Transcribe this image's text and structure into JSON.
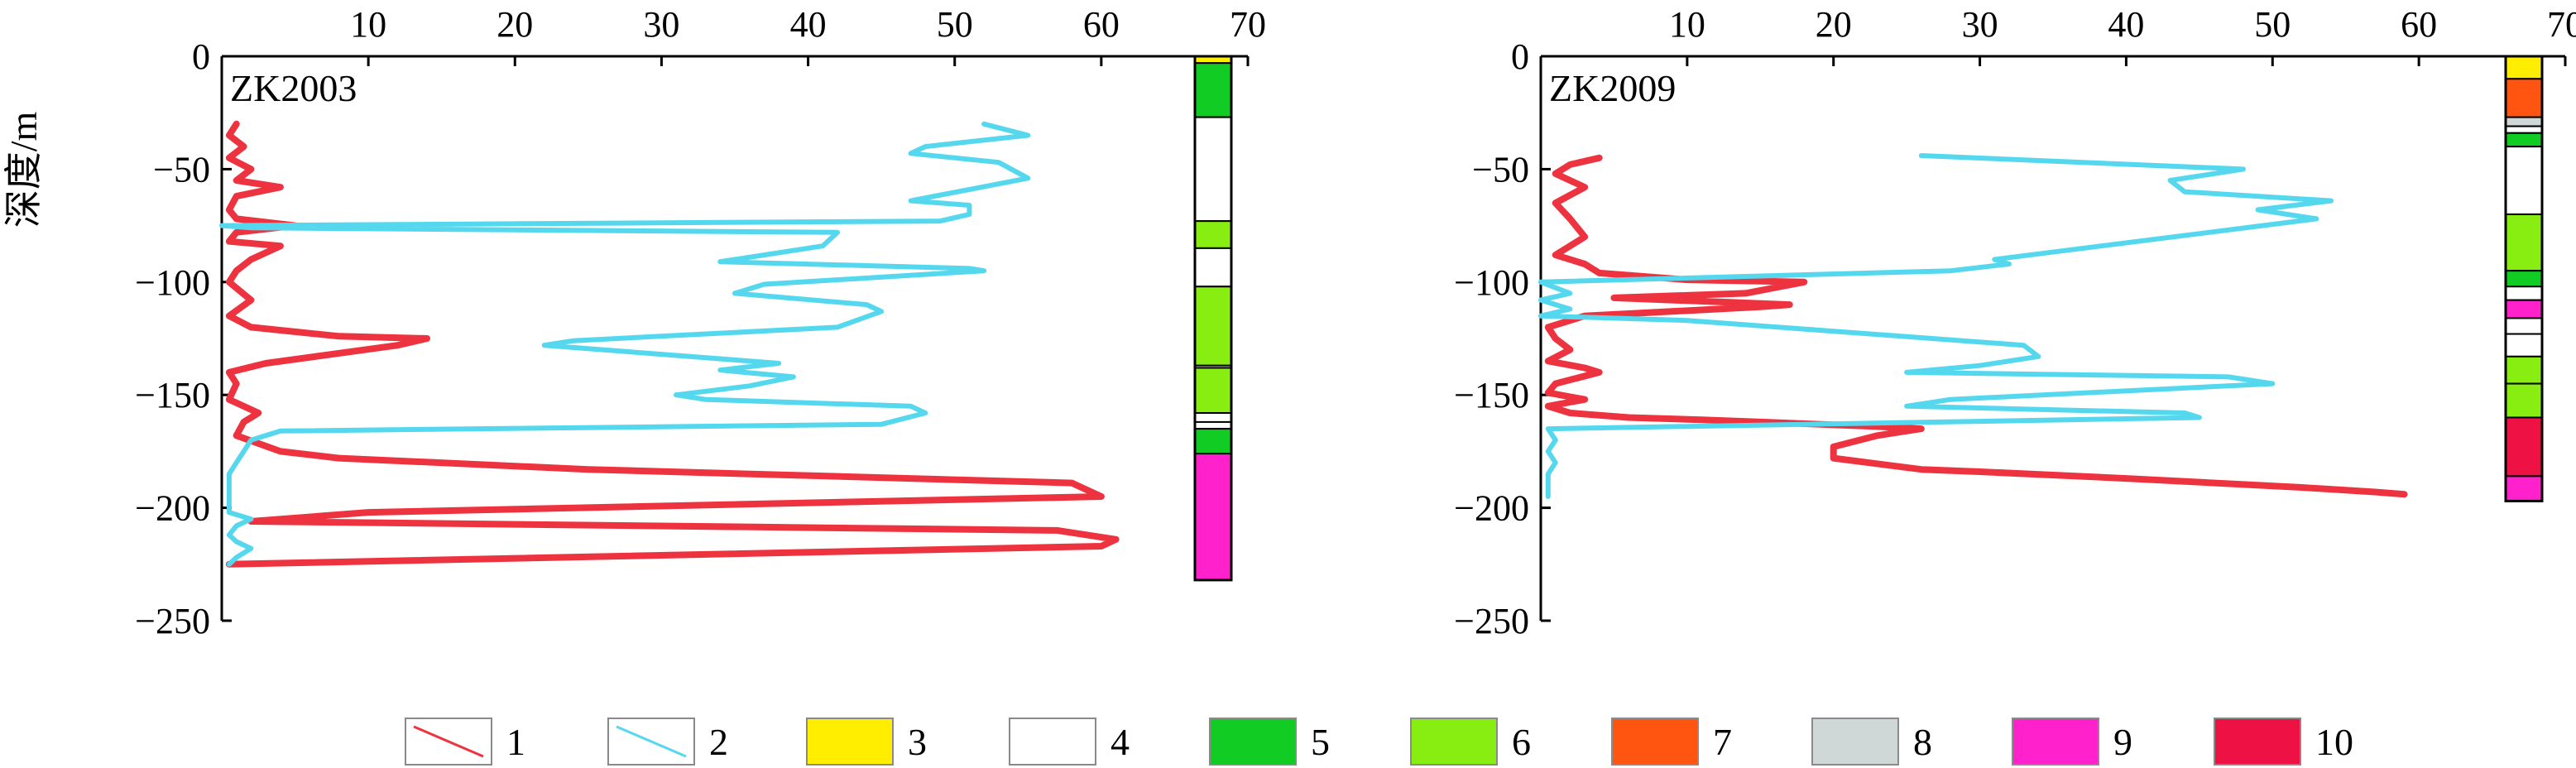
{
  "chart_data": {
    "type": "line",
    "ylabel": "深度/m",
    "x_ticks": [
      "10",
      "20",
      "30",
      "40",
      "50",
      "60",
      "70"
    ],
    "y_ticks": [
      "0",
      "−50",
      "−100",
      "−150",
      "−200",
      "−250"
    ],
    "xlim": [
      0,
      70
    ],
    "ylim": [
      -250,
      0
    ],
    "grid": false,
    "legend_position": "bottom",
    "colors": {
      "series_1": "#ee3340",
      "series_2": "#55d8ee",
      "3": "#ffee00",
      "4": "#ffffff",
      "5": "#11cc22",
      "6": "#88ee11",
      "7": "#ff5511",
      "8": "#cfd8d6",
      "9": "#ff22cc",
      "10": "#ee1144"
    },
    "legend": [
      {
        "key": "1",
        "kind": "line",
        "color": "series_1"
      },
      {
        "key": "2",
        "kind": "line",
        "color": "series_2"
      },
      {
        "key": "3",
        "kind": "box",
        "color": "3"
      },
      {
        "key": "4",
        "kind": "box",
        "color": "4"
      },
      {
        "key": "5",
        "kind": "box",
        "color": "5"
      },
      {
        "key": "6",
        "kind": "box",
        "color": "6"
      },
      {
        "key": "7",
        "kind": "box",
        "color": "7"
      },
      {
        "key": "8",
        "kind": "box",
        "color": "8"
      },
      {
        "key": "9",
        "kind": "box",
        "color": "9"
      },
      {
        "key": "10",
        "kind": "box",
        "color": "10"
      }
    ],
    "panels": [
      {
        "label": "ZK2003",
        "series": [
          {
            "legend_key": "1",
            "points": [
              [
                0.5,
                -225
              ],
              [
                60,
                -217
              ],
              [
                61,
                -214
              ],
              [
                57,
                -210
              ],
              [
                2,
                -206
              ],
              [
                10,
                -202
              ],
              [
                60,
                -195
              ],
              [
                58,
                -189
              ],
              [
                25,
                -183
              ],
              [
                8,
                -178
              ],
              [
                4,
                -175
              ],
              [
                1,
                -168
              ],
              [
                1.5,
                -162
              ],
              [
                2.5,
                -158
              ],
              [
                0.5,
                -152
              ],
              [
                1,
                -145
              ],
              [
                0.5,
                -140
              ],
              [
                3,
                -136
              ],
              [
                12,
                -128
              ],
              [
                14,
                -125
              ],
              [
                8,
                -124
              ],
              [
                2,
                -120
              ],
              [
                0.5,
                -115
              ],
              [
                2,
                -108
              ],
              [
                0.5,
                -100
              ],
              [
                1,
                -95
              ],
              [
                2,
                -90
              ],
              [
                4,
                -84
              ],
              [
                0.5,
                -82
              ],
              [
                1,
                -78
              ],
              [
                5,
                -75
              ],
              [
                1,
                -72
              ],
              [
                0.5,
                -68
              ],
              [
                1,
                -62
              ],
              [
                4,
                -58
              ],
              [
                1,
                -55
              ],
              [
                2,
                -50
              ],
              [
                0.5,
                -45
              ],
              [
                1.5,
                -40
              ],
              [
                0.5,
                -35
              ],
              [
                1,
                -30
              ]
            ]
          },
          {
            "legend_key": "2",
            "points": [
              [
                0.5,
                -225
              ],
              [
                1,
                -222
              ],
              [
                2,
                -218
              ],
              [
                1,
                -215
              ],
              [
                0.5,
                -212
              ],
              [
                1,
                -208
              ],
              [
                2,
                -205
              ],
              [
                0.5,
                -202
              ],
              [
                0.5,
                -195
              ],
              [
                0.5,
                -190
              ],
              [
                0.5,
                -185
              ],
              [
                1,
                -180
              ],
              [
                1.5,
                -175
              ],
              [
                2,
                -170
              ],
              [
                4,
                -166
              ],
              [
                45,
                -163
              ],
              [
                48,
                -158
              ],
              [
                47,
                -155
              ],
              [
                33,
                -152
              ],
              [
                31,
                -150
              ],
              [
                36,
                -146
              ],
              [
                39,
                -142
              ],
              [
                34,
                -139
              ],
              [
                38,
                -136
              ],
              [
                30,
                -132
              ],
              [
                22,
                -128
              ],
              [
                24,
                -126
              ],
              [
                42,
                -120
              ],
              [
                45,
                -113
              ],
              [
                44,
                -110
              ],
              [
                35,
                -105
              ],
              [
                37,
                -101
              ],
              [
                52,
                -95
              ],
              [
                51,
                -94
              ],
              [
                34,
                -91
              ],
              [
                37,
                -88
              ],
              [
                41,
                -84
              ],
              [
                42,
                -78
              ],
              [
                2,
                -76
              ],
              [
                0,
                -75
              ],
              [
                49,
                -73
              ],
              [
                51,
                -70
              ],
              [
                51,
                -66
              ],
              [
                47,
                -64
              ],
              [
                55,
                -54
              ],
              [
                53,
                -47
              ],
              [
                47,
                -43
              ],
              [
                48,
                -40
              ],
              [
                55,
                -35
              ],
              [
                52,
                -30
              ]
            ]
          }
        ],
        "column": {
          "top": 0,
          "bottom": -232,
          "segments": [
            {
              "from": 0,
              "to": -3,
              "color": "3"
            },
            {
              "from": -3,
              "to": -27,
              "color": "5"
            },
            {
              "from": -27,
              "to": -73,
              "color": "4"
            },
            {
              "from": -73,
              "to": -85,
              "color": "6"
            },
            {
              "from": -85,
              "to": -102,
              "color": "4"
            },
            {
              "from": -102,
              "to": -137,
              "color": "6"
            },
            {
              "from": -137,
              "to": -138,
              "color": "4"
            },
            {
              "from": -138,
              "to": -158,
              "color": "6"
            },
            {
              "from": -158,
              "to": -162,
              "color": "4"
            },
            {
              "from": -162,
              "to": -165,
              "color": "4"
            },
            {
              "from": -165,
              "to": -176,
              "color": "5"
            },
            {
              "from": -176,
              "to": -232,
              "color": "9"
            }
          ]
        }
      },
      {
        "label": "ZK2009",
        "series": [
          {
            "legend_key": "1",
            "points": [
              [
                59,
                -194
              ],
              [
                57,
                -193
              ],
              [
                52,
                -191
              ],
              [
                40,
                -187
              ],
              [
                30,
                -184
              ],
              [
                26,
                -183
              ],
              [
                20,
                -178
              ],
              [
                20,
                -173
              ],
              [
                23,
                -168
              ],
              [
                26,
                -165
              ],
              [
                23,
                -164
              ],
              [
                15,
                -162
              ],
              [
                11,
                -161
              ],
              [
                6,
                -160
              ],
              [
                2,
                -158
              ],
              [
                0.5,
                -155
              ],
              [
                3,
                -152
              ],
              [
                0.5,
                -149
              ],
              [
                1,
                -145
              ],
              [
                4,
                -140
              ],
              [
                3,
                -138
              ],
              [
                0.5,
                -135
              ],
              [
                2,
                -130
              ],
              [
                1,
                -125
              ],
              [
                0.5,
                -120
              ],
              [
                3,
                -115
              ],
              [
                15,
                -111
              ],
              [
                17,
                -110
              ],
              [
                5,
                -107
              ],
              [
                14,
                -105
              ],
              [
                18,
                -100
              ],
              [
                10,
                -99
              ],
              [
                4,
                -96
              ],
              [
                3,
                -92
              ],
              [
                1,
                -88
              ],
              [
                3,
                -80
              ],
              [
                2,
                -72
              ],
              [
                1,
                -65
              ],
              [
                3,
                -58
              ],
              [
                1,
                -52
              ],
              [
                2,
                -48
              ],
              [
                4,
                -45
              ]
            ]
          },
          {
            "legend_key": "2",
            "points": [
              [
                0.5,
                -195
              ],
              [
                0.5,
                -190
              ],
              [
                0.5,
                -185
              ],
              [
                1,
                -180
              ],
              [
                0.5,
                -175
              ],
              [
                1,
                -170
              ],
              [
                0.5,
                -165
              ],
              [
                45,
                -160
              ],
              [
                44,
                -158
              ],
              [
                25,
                -155
              ],
              [
                28,
                -152
              ],
              [
                50,
                -145
              ],
              [
                47,
                -142
              ],
              [
                25,
                -140
              ],
              [
                30,
                -137
              ],
              [
                34,
                -133
              ],
              [
                33,
                -128
              ],
              [
                10,
                -117
              ],
              [
                0,
                -115
              ],
              [
                2,
                -112
              ],
              [
                0,
                -108
              ],
              [
                2,
                -105
              ],
              [
                0,
                -100
              ],
              [
                28,
                -95
              ],
              [
                32,
                -92
              ],
              [
                31,
                -90
              ],
              [
                53,
                -72
              ],
              [
                49,
                -68
              ],
              [
                54,
                -64
              ],
              [
                44,
                -60
              ],
              [
                43,
                -55
              ],
              [
                48,
                -50
              ],
              [
                26,
                -44
              ]
            ]
          }
        ],
        "column": {
          "top": 0,
          "bottom": -197,
          "segments": [
            {
              "from": 0,
              "to": -10,
              "color": "3"
            },
            {
              "from": -10,
              "to": -27,
              "color": "7"
            },
            {
              "from": -27,
              "to": -31,
              "color": "8"
            },
            {
              "from": -31,
              "to": -34,
              "color": "4"
            },
            {
              "from": -34,
              "to": -40,
              "color": "5"
            },
            {
              "from": -40,
              "to": -70,
              "color": "4"
            },
            {
              "from": -70,
              "to": -95,
              "color": "6"
            },
            {
              "from": -95,
              "to": -102,
              "color": "5"
            },
            {
              "from": -102,
              "to": -108,
              "color": "4"
            },
            {
              "from": -108,
              "to": -116,
              "color": "9"
            },
            {
              "from": -116,
              "to": -123,
              "color": "4"
            },
            {
              "from": -123,
              "to": -133,
              "color": "4"
            },
            {
              "from": -133,
              "to": -145,
              "color": "6"
            },
            {
              "from": -145,
              "to": -160,
              "color": "6"
            },
            {
              "from": -160,
              "to": -186,
              "color": "10"
            },
            {
              "from": -186,
              "to": -197,
              "color": "9"
            }
          ]
        }
      }
    ]
  }
}
